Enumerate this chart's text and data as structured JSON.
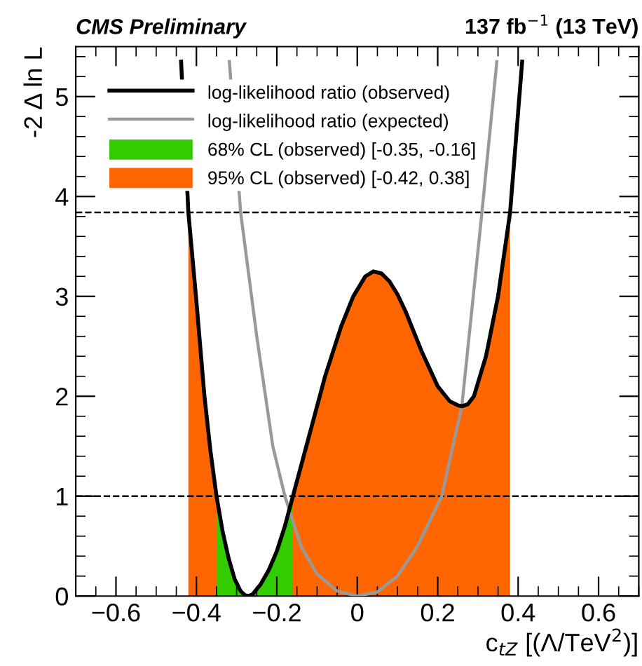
{
  "chart_data": {
    "type": "line",
    "title": "CMS Preliminary",
    "subtitle": "137 fb$^{−1}$ (13 TeV)",
    "xlabel": "c$_{tZ}$ [(Λ/TeV$^{2}$)]",
    "ylabel": "-2 Δ ln L",
    "series": [
      {
        "name": "log-likelihood ratio (observed)",
        "color": "#000000",
        "x": [
          -0.438,
          -0.42,
          -0.4,
          -0.38,
          -0.365,
          -0.35,
          -0.335,
          -0.32,
          -0.305,
          -0.29,
          -0.28,
          -0.27,
          -0.26,
          -0.24,
          -0.22,
          -0.2,
          -0.18,
          -0.16,
          -0.12,
          -0.08,
          -0.04,
          -0.01,
          0.02,
          0.04,
          0.06,
          0.08,
          0.1,
          0.12,
          0.16,
          0.2,
          0.23,
          0.25,
          0.26,
          0.275,
          0.29,
          0.32,
          0.35,
          0.38,
          0.41
        ],
        "values": [
          5.35,
          3.84,
          2.95,
          2.0,
          1.45,
          1.0,
          0.65,
          0.38,
          0.17,
          0.05,
          0.01,
          0.0,
          0.02,
          0.12,
          0.26,
          0.45,
          0.7,
          1.0,
          1.6,
          2.2,
          2.7,
          3.0,
          3.2,
          3.25,
          3.23,
          3.15,
          3.02,
          2.85,
          2.45,
          2.1,
          1.95,
          1.91,
          1.9,
          1.92,
          2.0,
          2.4,
          3.0,
          3.84,
          5.35
        ]
      },
      {
        "name": "log-likelihood ratio (expected)",
        "color": "#999999",
        "x": [
          -0.318,
          -0.29,
          -0.25,
          -0.21,
          -0.18,
          -0.14,
          -0.1,
          -0.05,
          0.0,
          0.05,
          0.1,
          0.15,
          0.21,
          0.26,
          0.31,
          0.347
        ],
        "values": [
          5.35,
          3.84,
          2.6,
          1.5,
          1.0,
          0.5,
          0.22,
          0.05,
          0.0,
          0.04,
          0.2,
          0.5,
          1.0,
          1.9,
          3.84,
          5.35
        ]
      },
      {
        "name": "68% CL (observed) [-0.35, -0.16]",
        "type": "area",
        "color": "#33cc00",
        "x": [
          -0.35,
          -0.335,
          -0.32,
          -0.305,
          -0.29,
          -0.28,
          -0.27,
          -0.26,
          -0.24,
          -0.22,
          -0.2,
          -0.18,
          -0.16
        ],
        "values": [
          1.0,
          0.65,
          0.38,
          0.17,
          0.05,
          0.01,
          0.0,
          0.02,
          0.12,
          0.26,
          0.45,
          0.7,
          1.0
        ]
      },
      {
        "name": "95% CL (observed) [-0.42, 0.38]",
        "type": "area",
        "color": "#ff6600",
        "x": [
          -0.42,
          -0.4,
          -0.38,
          -0.365,
          -0.35,
          -0.335,
          -0.32,
          -0.305,
          -0.29,
          -0.28,
          -0.27,
          -0.26,
          -0.24,
          -0.22,
          -0.2,
          -0.18,
          -0.16,
          -0.12,
          -0.08,
          -0.04,
          -0.01,
          0.02,
          0.04,
          0.06,
          0.08,
          0.1,
          0.12,
          0.16,
          0.2,
          0.23,
          0.25,
          0.26,
          0.275,
          0.29,
          0.32,
          0.35,
          0.38
        ],
        "values": [
          3.84,
          2.95,
          2.0,
          1.45,
          1.0,
          0.65,
          0.38,
          0.17,
          0.05,
          0.01,
          0.0,
          0.02,
          0.12,
          0.26,
          0.45,
          0.7,
          1.0,
          1.6,
          2.2,
          2.7,
          3.0,
          3.2,
          3.25,
          3.23,
          3.15,
          3.02,
          2.85,
          2.45,
          2.1,
          1.95,
          1.91,
          1.9,
          1.92,
          2.0,
          2.4,
          3.0,
          3.84
        ]
      }
    ],
    "ref_lines": [
      {
        "axis": "y",
        "value": 1,
        "color": "#000000",
        "line_style": "dashed"
      },
      {
        "axis": "y",
        "value": 3.84,
        "color": "#000000",
        "line_style": "dashed"
      }
    ],
    "xlim": [
      -0.7,
      0.7
    ],
    "xticks": [
      {
        "value": -0.6,
        "label": "−0.6"
      },
      {
        "value": -0.4,
        "label": "−0.4"
      },
      {
        "value": -0.2,
        "label": "−0.2"
      },
      0,
      0.2,
      0.4,
      0.6
    ],
    "ylim": [
      0,
      5.5
    ],
    "yticks": [
      0,
      1,
      2,
      3,
      4,
      5
    ],
    "grid": false,
    "legend": "top left",
    "marker": "none",
    "line_style": "solid"
  }
}
